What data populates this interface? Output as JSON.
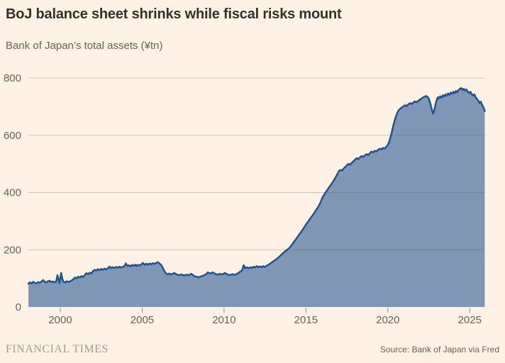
{
  "chart": {
    "title": "BoJ balance sheet shrinks while fiscal risks mount",
    "subtitle": "Bank of Japan’s total assets (¥tn)"
  },
  "footer": {
    "logo": "FINANCIAL TIMES",
    "source": "Source: Bank of Japan via Fred"
  },
  "colors": {
    "background": "#fff1e5",
    "title_text": "#33302e",
    "muted_text": "#66605c",
    "logo_text": "#a29a8e",
    "gridline": "rgba(102,96,92,0.33)",
    "tick": "#8f8a85",
    "area_fill": "#7f96b4",
    "line": "#1f5492"
  },
  "chart_data": {
    "type": "area",
    "title": "BoJ balance sheet shrinks while fiscal risks mount",
    "subtitle": "Bank of Japan’s total assets (¥tn)",
    "xlabel": "",
    "ylabel": "¥tn",
    "source": "Source: Bank of Japan via Fred",
    "grid": true,
    "legend": "none",
    "x_ticks": [
      2000,
      2005,
      2010,
      2015,
      2020,
      2025
    ],
    "y_ticks": [
      0,
      200,
      400,
      600,
      800
    ],
    "x_range": [
      1998.05,
      2025.92
    ],
    "ylim": [
      0,
      800
    ],
    "series": [
      {
        "name": "BoJ total assets",
        "points": [
          [
            1998.05,
            82
          ],
          [
            1998.15,
            86
          ],
          [
            1998.25,
            82
          ],
          [
            1998.35,
            88
          ],
          [
            1998.45,
            84
          ],
          [
            1998.55,
            83
          ],
          [
            1998.65,
            87
          ],
          [
            1998.75,
            85
          ],
          [
            1998.85,
            89
          ],
          [
            1998.95,
            94
          ],
          [
            1999.05,
            88
          ],
          [
            1999.15,
            86
          ],
          [
            1999.25,
            90
          ],
          [
            1999.35,
            92
          ],
          [
            1999.45,
            87
          ],
          [
            1999.55,
            89
          ],
          [
            1999.65,
            86
          ],
          [
            1999.75,
            90
          ],
          [
            1999.82,
            111
          ],
          [
            1999.9,
            95
          ],
          [
            1999.95,
            83
          ],
          [
            2000.05,
            119
          ],
          [
            2000.12,
            99
          ],
          [
            2000.2,
            88
          ],
          [
            2000.3,
            86
          ],
          [
            2000.4,
            90
          ],
          [
            2000.5,
            87
          ],
          [
            2000.6,
            90
          ],
          [
            2000.7,
            93
          ],
          [
            2000.8,
            97
          ],
          [
            2000.9,
            103
          ],
          [
            2001.0,
            100
          ],
          [
            2001.1,
            106
          ],
          [
            2001.2,
            103
          ],
          [
            2001.3,
            108
          ],
          [
            2001.4,
            105
          ],
          [
            2001.5,
            112
          ],
          [
            2001.6,
            118
          ],
          [
            2001.7,
            115
          ],
          [
            2001.8,
            120
          ],
          [
            2001.9,
            117
          ],
          [
            2002.0,
            126
          ],
          [
            2002.1,
            130
          ],
          [
            2002.2,
            127
          ],
          [
            2002.3,
            132
          ],
          [
            2002.4,
            129
          ],
          [
            2002.5,
            133
          ],
          [
            2002.6,
            130
          ],
          [
            2002.7,
            134
          ],
          [
            2002.8,
            131
          ],
          [
            2002.9,
            135
          ],
          [
            2003.0,
            141
          ],
          [
            2003.1,
            136
          ],
          [
            2003.2,
            139
          ],
          [
            2003.3,
            136
          ],
          [
            2003.4,
            140
          ],
          [
            2003.5,
            137
          ],
          [
            2003.6,
            141
          ],
          [
            2003.7,
            138
          ],
          [
            2003.8,
            140
          ],
          [
            2003.9,
            142
          ],
          [
            2004.0,
            152
          ],
          [
            2004.1,
            143
          ],
          [
            2004.2,
            146
          ],
          [
            2004.3,
            142
          ],
          [
            2004.4,
            147
          ],
          [
            2004.5,
            144
          ],
          [
            2004.6,
            148
          ],
          [
            2004.65,
            143
          ],
          [
            2004.75,
            147
          ],
          [
            2004.85,
            145
          ],
          [
            2004.95,
            149
          ],
          [
            2005.05,
            154
          ],
          [
            2005.15,
            147
          ],
          [
            2005.25,
            151
          ],
          [
            2005.35,
            148
          ],
          [
            2005.45,
            152
          ],
          [
            2005.55,
            149
          ],
          [
            2005.65,
            153
          ],
          [
            2005.75,
            150
          ],
          [
            2005.85,
            154
          ],
          [
            2005.95,
            157
          ],
          [
            2006.05,
            152
          ],
          [
            2006.15,
            148
          ],
          [
            2006.25,
            138
          ],
          [
            2006.35,
            126
          ],
          [
            2006.45,
            118
          ],
          [
            2006.55,
            114
          ],
          [
            2006.65,
            117
          ],
          [
            2006.75,
            113
          ],
          [
            2006.85,
            116
          ],
          [
            2006.95,
            119
          ],
          [
            2007.1,
            114
          ],
          [
            2007.25,
            111
          ],
          [
            2007.4,
            114
          ],
          [
            2007.55,
            110
          ],
          [
            2007.7,
            113
          ],
          [
            2007.85,
            111
          ],
          [
            2008.0,
            116
          ],
          [
            2008.15,
            109
          ],
          [
            2008.3,
            106
          ],
          [
            2008.45,
            104
          ],
          [
            2008.6,
            107
          ],
          [
            2008.75,
            110
          ],
          [
            2008.9,
            114
          ],
          [
            2009.0,
            121
          ],
          [
            2009.15,
            117
          ],
          [
            2009.3,
            121
          ],
          [
            2009.45,
            116
          ],
          [
            2009.6,
            113
          ],
          [
            2009.75,
            116
          ],
          [
            2009.9,
            114
          ],
          [
            2010.05,
            119
          ],
          [
            2010.2,
            114
          ],
          [
            2010.35,
            111
          ],
          [
            2010.5,
            115
          ],
          [
            2010.65,
            112
          ],
          [
            2010.8,
            116
          ],
          [
            2010.95,
            122
          ],
          [
            2011.1,
            128
          ],
          [
            2011.2,
            146
          ],
          [
            2011.3,
            135
          ],
          [
            2011.4,
            139
          ],
          [
            2011.5,
            135
          ],
          [
            2011.6,
            139
          ],
          [
            2011.7,
            136
          ],
          [
            2011.8,
            141
          ],
          [
            2011.9,
            138
          ],
          [
            2012.0,
            143
          ],
          [
            2012.1,
            139
          ],
          [
            2012.2,
            142
          ],
          [
            2012.3,
            139
          ],
          [
            2012.4,
            143
          ],
          [
            2012.5,
            140
          ],
          [
            2012.6,
            144
          ],
          [
            2012.7,
            147
          ],
          [
            2012.8,
            151
          ],
          [
            2012.9,
            155
          ],
          [
            2013.0,
            159
          ],
          [
            2013.15,
            165
          ],
          [
            2013.3,
            172
          ],
          [
            2013.45,
            180
          ],
          [
            2013.6,
            188
          ],
          [
            2013.75,
            196
          ],
          [
            2013.9,
            202
          ],
          [
            2014.0,
            207
          ],
          [
            2014.15,
            218
          ],
          [
            2014.3,
            230
          ],
          [
            2014.45,
            242
          ],
          [
            2014.6,
            254
          ],
          [
            2014.75,
            266
          ],
          [
            2014.9,
            279
          ],
          [
            2015.0,
            288
          ],
          [
            2015.15,
            300
          ],
          [
            2015.3,
            312
          ],
          [
            2015.45,
            324
          ],
          [
            2015.6,
            337
          ],
          [
            2015.75,
            350
          ],
          [
            2015.9,
            366
          ],
          [
            2016.0,
            382
          ],
          [
            2016.15,
            396
          ],
          [
            2016.3,
            409
          ],
          [
            2016.45,
            421
          ],
          [
            2016.6,
            433
          ],
          [
            2016.75,
            447
          ],
          [
            2016.9,
            462
          ],
          [
            2017.0,
            474
          ],
          [
            2017.1,
            479
          ],
          [
            2017.2,
            476
          ],
          [
            2017.3,
            484
          ],
          [
            2017.4,
            489
          ],
          [
            2017.5,
            495
          ],
          [
            2017.6,
            500
          ],
          [
            2017.7,
            497
          ],
          [
            2017.8,
            504
          ],
          [
            2017.9,
            509
          ],
          [
            2018.0,
            515
          ],
          [
            2018.1,
            520
          ],
          [
            2018.2,
            517
          ],
          [
            2018.3,
            523
          ],
          [
            2018.4,
            527
          ],
          [
            2018.5,
            524
          ],
          [
            2018.6,
            530
          ],
          [
            2018.7,
            534
          ],
          [
            2018.8,
            531
          ],
          [
            2018.9,
            537
          ],
          [
            2019.0,
            543
          ],
          [
            2019.1,
            540
          ],
          [
            2019.2,
            546
          ],
          [
            2019.3,
            543
          ],
          [
            2019.4,
            549
          ],
          [
            2019.5,
            553
          ],
          [
            2019.6,
            550
          ],
          [
            2019.7,
            556
          ],
          [
            2019.8,
            553
          ],
          [
            2019.9,
            559
          ],
          [
            2020.0,
            566
          ],
          [
            2020.08,
            577
          ],
          [
            2020.16,
            592
          ],
          [
            2020.24,
            610
          ],
          [
            2020.32,
            630
          ],
          [
            2020.4,
            648
          ],
          [
            2020.48,
            663
          ],
          [
            2020.56,
            676
          ],
          [
            2020.64,
            686
          ],
          [
            2020.75,
            692
          ],
          [
            2020.85,
            697
          ],
          [
            2020.95,
            701
          ],
          [
            2021.05,
            705
          ],
          [
            2021.15,
            702
          ],
          [
            2021.25,
            708
          ],
          [
            2021.35,
            712
          ],
          [
            2021.45,
            709
          ],
          [
            2021.55,
            714
          ],
          [
            2021.65,
            718
          ],
          [
            2021.75,
            715
          ],
          [
            2021.85,
            720
          ],
          [
            2021.95,
            724
          ],
          [
            2022.05,
            728
          ],
          [
            2022.15,
            732
          ],
          [
            2022.25,
            735
          ],
          [
            2022.35,
            737
          ],
          [
            2022.45,
            733
          ],
          [
            2022.52,
            726
          ],
          [
            2022.58,
            714
          ],
          [
            2022.64,
            700
          ],
          [
            2022.7,
            686
          ],
          [
            2022.76,
            676
          ],
          [
            2022.82,
            684
          ],
          [
            2022.88,
            698
          ],
          [
            2022.94,
            714
          ],
          [
            2023.0,
            727
          ],
          [
            2023.06,
            733
          ],
          [
            2023.12,
            728
          ],
          [
            2023.2,
            736
          ],
          [
            2023.28,
            731
          ],
          [
            2023.36,
            740
          ],
          [
            2023.44,
            735
          ],
          [
            2023.52,
            743
          ],
          [
            2023.6,
            738
          ],
          [
            2023.68,
            746
          ],
          [
            2023.76,
            741
          ],
          [
            2023.84,
            749
          ],
          [
            2023.92,
            745
          ],
          [
            2024.0,
            752
          ],
          [
            2024.08,
            747
          ],
          [
            2024.16,
            755
          ],
          [
            2024.24,
            750
          ],
          [
            2024.32,
            758
          ],
          [
            2024.4,
            762
          ],
          [
            2024.48,
            765
          ],
          [
            2024.56,
            758
          ],
          [
            2024.64,
            762
          ],
          [
            2024.72,
            756
          ],
          [
            2024.8,
            760
          ],
          [
            2024.88,
            752
          ],
          [
            2024.96,
            748
          ],
          [
            2025.04,
            752
          ],
          [
            2025.12,
            744
          ],
          [
            2025.2,
            739
          ],
          [
            2025.28,
            743
          ],
          [
            2025.36,
            733
          ],
          [
            2025.44,
            727
          ],
          [
            2025.52,
            721
          ],
          [
            2025.6,
            713
          ],
          [
            2025.68,
            717
          ],
          [
            2025.76,
            705
          ],
          [
            2025.84,
            697
          ],
          [
            2025.92,
            684
          ]
        ]
      }
    ]
  }
}
